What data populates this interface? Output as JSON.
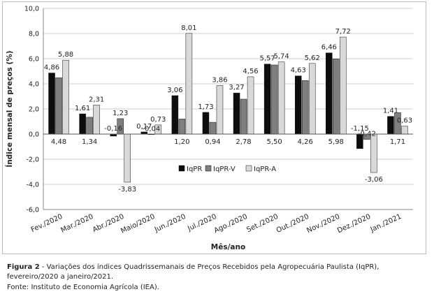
{
  "chart_data": {
    "type": "bar",
    "title": "",
    "xlabel": "Mês/ano",
    "ylabel": "Índice mensal de preços (%)",
    "ylim": [
      -6.0,
      10.0
    ],
    "yticks": [
      "-6,0",
      "-4,0",
      "-2,0",
      "0,0",
      "2,0",
      "4,0",
      "6,0",
      "8,0",
      "10,0"
    ],
    "ytick_values": [
      -6,
      -4,
      -2,
      0,
      2,
      4,
      6,
      8,
      10
    ],
    "grid": true,
    "legend_position": "center-right",
    "categories": [
      "Fev./2020",
      "Mar./2020",
      "Abr./2020",
      "Maio/2020",
      "Jun./2020",
      "Jul./2020",
      "Ago./2020",
      "Set./2020",
      "Out./2020",
      "Nov./2020",
      "Dez./2020",
      "Jan./2021"
    ],
    "series": [
      {
        "name": "IqPR",
        "color": "#0d0d0d",
        "values": [
          4.86,
          1.61,
          -0.16,
          0.17,
          3.06,
          1.73,
          3.27,
          5.57,
          4.63,
          6.46,
          -1.15,
          1.41
        ],
        "labels": [
          "4,86",
          "1,61",
          "-0,16",
          "0,17",
          "3,06",
          "1,73",
          "3,27",
          "5,57",
          "4,63",
          "6,46",
          "-1,15",
          "1,41"
        ]
      },
      {
        "name": "IqPR-V",
        "color": "#7f7f7f",
        "values": [
          4.48,
          1.34,
          1.23,
          -0.04,
          1.2,
          0.94,
          2.78,
          5.5,
          4.26,
          5.98,
          -0.42,
          1.71
        ],
        "labels": [
          "4,48",
          "1,34",
          "1,23",
          "-0,04",
          "1,20",
          "0,94",
          "2,78",
          "5,50",
          "4,26",
          "5,98",
          "-0,42",
          "1,71"
        ]
      },
      {
        "name": "IqPR-A",
        "color": "#d9d9d9",
        "values": [
          5.88,
          2.31,
          -3.83,
          0.73,
          8.01,
          3.86,
          4.56,
          5.74,
          5.62,
          7.72,
          -3.06,
          0.63
        ],
        "labels": [
          "5,88",
          "2,31",
          "-3,83",
          "0,73",
          "8,01",
          "3,86",
          "4,56",
          "5,74",
          "5,62",
          "7,72",
          "-3,06",
          "0,63"
        ]
      }
    ]
  },
  "caption": {
    "figure_label": "Figura 2",
    "text": " - Variações dos índices Quadrissemanais de Preços Recebidos pela Agropecuária Paulista (IqPR), fevereiro/2020 a janeiro/2021.",
    "source": "Fonte: Instituto de Economia Agrícola (IEA)."
  }
}
